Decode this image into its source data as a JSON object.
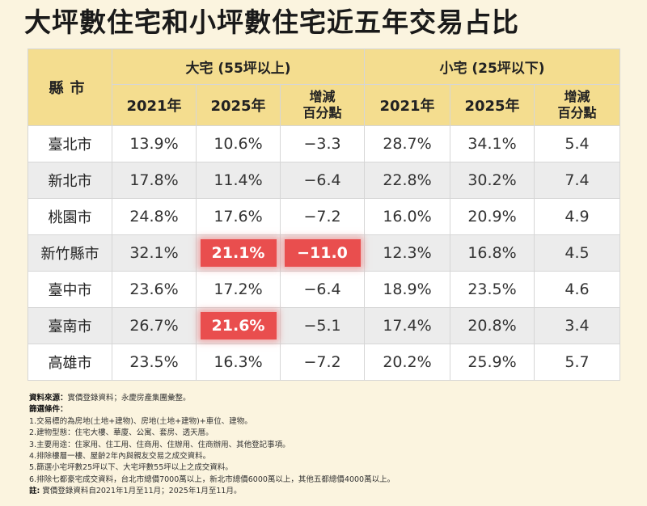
{
  "title": {
    "part1": "大坪數住宅和小坪數住宅",
    "part2": "近五年交易占比"
  },
  "table": {
    "city_header": "縣市",
    "large_group": "大宅 (55坪以上)",
    "small_group": "小宅 (25坪以下)",
    "year1": "2021年",
    "year2": "2025年",
    "delta_line1": "增減",
    "delta_line2": "百分點",
    "rows": [
      {
        "city": "臺北市",
        "l21": "13.9%",
        "l25": "10.6%",
        "ld": "−3.3",
        "s21": "28.7%",
        "s25": "34.1%",
        "sd": "5.4"
      },
      {
        "city": "新北市",
        "l21": "17.8%",
        "l25": "11.4%",
        "ld": "−6.4",
        "s21": "22.8%",
        "s25": "30.2%",
        "sd": "7.4"
      },
      {
        "city": "桃園市",
        "l21": "24.8%",
        "l25": "17.6%",
        "ld": "−7.2",
        "s21": "16.0%",
        "s25": "20.9%",
        "sd": "4.9"
      },
      {
        "city": "新竹縣市",
        "l21": "32.1%",
        "l25": "21.1%",
        "ld": "−11.0",
        "s21": "12.3%",
        "s25": "16.8%",
        "sd": "4.5"
      },
      {
        "city": "臺中市",
        "l21": "23.6%",
        "l25": "17.2%",
        "ld": "−6.4",
        "s21": "18.9%",
        "s25": "23.5%",
        "sd": "4.6"
      },
      {
        "city": "臺南市",
        "l21": "26.7%",
        "l25": "21.6%",
        "ld": "−5.1",
        "s21": "17.4%",
        "s25": "20.8%",
        "sd": "3.4"
      },
      {
        "city": "高雄市",
        "l21": "23.5%",
        "l25": "16.3%",
        "ld": "−7.2",
        "s21": "20.2%",
        "s25": "25.9%",
        "sd": "5.7"
      }
    ],
    "highlight_color": "#e94e4e"
  },
  "notes": {
    "source_label": "資料來源：",
    "source_text": "實價登錄資料；永慶房產集團彙整。",
    "filter_label": "篩選條件：",
    "items": [
      "1.交易標的為房地(土地+建物)、房地(土地+建物)+車位、建物。",
      "2.建物型態：住宅大樓、華廈、公寓、套房、透天厝。",
      "3.主要用途：住家用、住工用、住商用、住辦用、住商辦用、其他登記事項。",
      "4.排除樓層一樓、屋齡2年內與親友交易之成交資料。",
      "5.篩選小宅坪數25坪以下、大宅坪數55坪以上之成交資料。",
      "6.排除七都豪宅成交資料，台北市總價7000萬以上，新北市總價6000萬以上，其他五都總價4000萬以上。"
    ],
    "note_label": "註:",
    "note_text": "實價登錄資料自2021年1月至11月；2025年1月至11月。"
  }
}
